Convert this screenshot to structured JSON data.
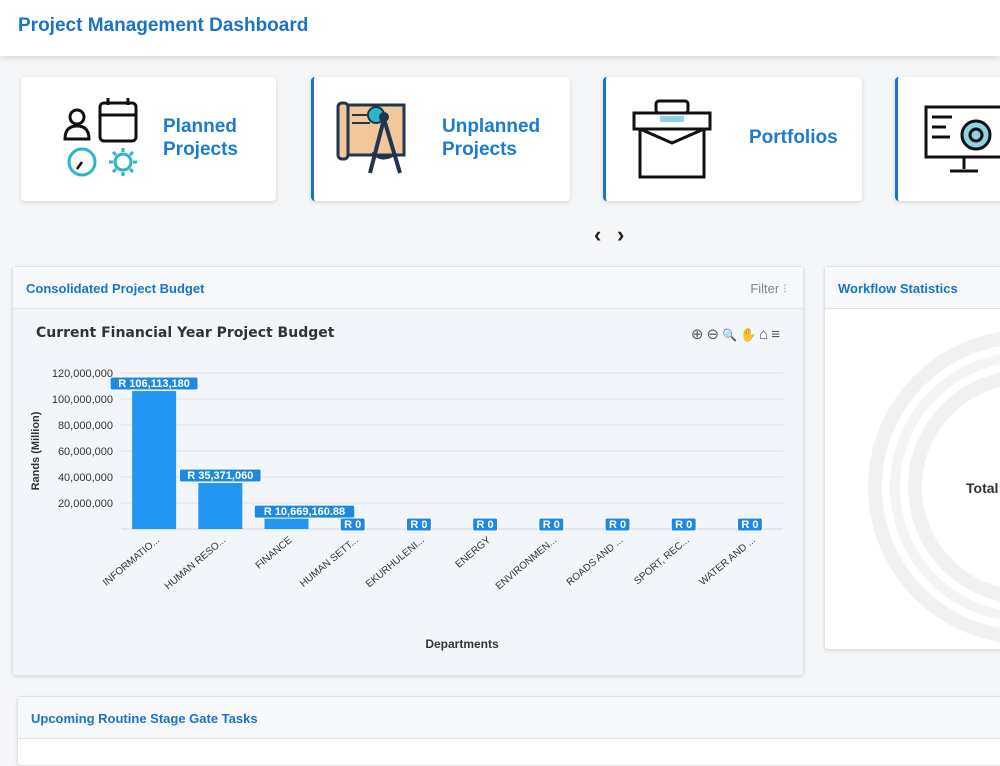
{
  "header": {
    "title": "Project Management Dashboard"
  },
  "cards": [
    {
      "label_line1": "Planned",
      "label_line2": "Projects",
      "icon": "planning-icon"
    },
    {
      "label_line1": "Unplanned",
      "label_line2": "Projects",
      "icon": "blueprint-compass-icon"
    },
    {
      "label": "Portfolios",
      "icon": "briefcase-icon"
    },
    {
      "icon": "monitor-gear-icon"
    }
  ],
  "carousel": {
    "prev": "‹",
    "next": "›"
  },
  "budget_panel": {
    "title": "Consolidated Project Budget",
    "filter_label": "Filter",
    "filter_icon": "⁝",
    "tools": [
      "⊕",
      "⊖",
      "🔍",
      "✋",
      "⌂",
      "≡"
    ]
  },
  "workflow_panel": {
    "title": "Workflow Statistics",
    "center_label": "Total"
  },
  "stage_gate_panel": {
    "title": "Upcoming Routine Stage Gate Tasks"
  },
  "colors": {
    "accent": "#1a73c9",
    "bar": "#2196f3",
    "label_bg": "#1e88e5"
  },
  "chart_data": {
    "type": "bar",
    "title": "Current Financial Year Project Budget",
    "xlabel": "Departments",
    "ylabel": "Rands (Million)",
    "ylim": [
      0,
      120000000
    ],
    "yticks": [
      "120,000,000",
      "100,000,000",
      "80,000,000",
      "60,000,000",
      "40,000,000",
      "20,000,000"
    ],
    "categories": [
      "INFORMATIO...",
      "HUMAN RESO...",
      "FINANCE",
      "HUMAN SETT...",
      "EKURHULENI...",
      "ENERGY",
      "ENVIRONMEN...",
      "ROADS AND ...",
      "SPORT, REC...",
      "WATER AND ..."
    ],
    "values": [
      106113180,
      35371060,
      10669160.88,
      0,
      0,
      0,
      0,
      0,
      0,
      0
    ],
    "data_labels": [
      "R 106,113,180",
      "R 35,371,060",
      "R 10,669,160.88",
      "R 0",
      "R 0",
      "R 0",
      "R 0",
      "R 0",
      "R 0",
      "R 0"
    ]
  }
}
